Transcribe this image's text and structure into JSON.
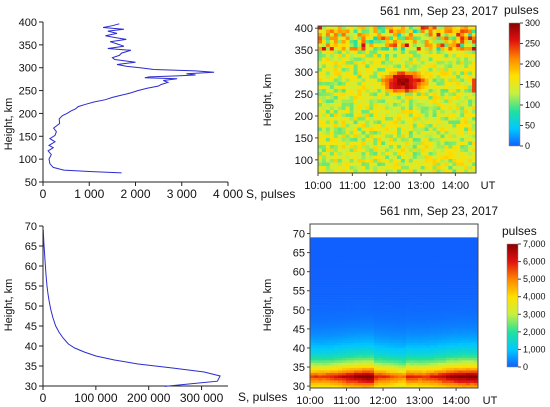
{
  "chart_data": [
    {
      "id": "top-left",
      "type": "line",
      "xlabel": "S, pulses",
      "ylabel": "Height, km",
      "xlim": [
        0,
        4000
      ],
      "ylim": [
        50,
        400
      ],
      "xticks": [
        0,
        1000,
        2000,
        3000,
        4000
      ],
      "xtick_labels": [
        "0",
        "1 000",
        "2 000",
        "3 000",
        "4 000"
      ],
      "yticks": [
        50,
        100,
        150,
        200,
        250,
        300,
        350,
        400
      ],
      "series_color": "#2c2ccf",
      "x": [
        1700,
        1000,
        450,
        220,
        150,
        130,
        180,
        110,
        220,
        130,
        260,
        150,
        260,
        290,
        230,
        360,
        350,
        420,
        520,
        600,
        700,
        760,
        920,
        1100,
        1350,
        1500,
        1700,
        1900,
        2050,
        2250,
        2500,
        2550,
        2700,
        2600,
        2900,
        2200,
        2300,
        2900,
        3300,
        3100,
        3700,
        3300,
        2400,
        2100,
        1800,
        1600,
        2000,
        1550,
        1500,
        1650,
        1700,
        1900,
        1400,
        1750,
        1600,
        1450,
        1800,
        1550,
        1350,
        1600,
        1400,
        1750,
        1300,
        1500,
        1650
      ],
      "y": [
        70,
        73,
        76,
        82,
        90,
        100,
        110,
        118,
        125,
        130,
        138,
        145,
        152,
        160,
        168,
        178,
        188,
        195,
        200,
        205,
        210,
        215,
        220,
        225,
        230,
        235,
        240,
        245,
        250,
        255,
        260,
        263,
        268,
        272,
        276,
        278,
        280,
        282,
        284,
        287,
        290,
        293,
        296,
        300,
        303,
        307,
        312,
        318,
        322,
        327,
        332,
        338,
        342,
        347,
        352,
        357,
        362,
        366,
        370,
        375,
        380,
        384,
        388,
        392,
        396
      ]
    },
    {
      "id": "top-right",
      "type": "heatmap",
      "title": "561 nm, Sep 23, 2017",
      "ylabel": "Height, km",
      "colorbar_label": "pulses",
      "x_tick_labels": [
        "10:00",
        "11:00",
        "12:00",
        "13:00",
        "14:00",
        "UT"
      ],
      "xlim_hours": [
        10.0,
        14.6
      ],
      "yticks": [
        100,
        150,
        200,
        250,
        300,
        350,
        400
      ],
      "ylim": [
        70,
        405
      ],
      "zlim": [
        0,
        300
      ],
      "colorbar_ticks": [
        0,
        50,
        100,
        150,
        200,
        250,
        300
      ],
      "colormap": [
        "#1060ff",
        "#00c8ff",
        "#20e0a0",
        "#c8f040",
        "#ffe000",
        "#ff8800",
        "#e01010",
        "#8a0000"
      ],
      "base_level": 140,
      "hotspot": {
        "time_range": [
          "11:50",
          "13:10"
        ],
        "height_range_km": [
          255,
          300
        ],
        "peak_pulses": 290
      },
      "upper_noise": {
        "height_above_km": 350,
        "max_pulses": 260
      }
    },
    {
      "id": "bottom-left",
      "type": "line",
      "xlabel": "S, pulses",
      "ylabel": "Height, km",
      "xlim": [
        0,
        350000
      ],
      "ylim": [
        30,
        70
      ],
      "xticks": [
        0,
        100000,
        200000,
        300000
      ],
      "xtick_labels": [
        "0",
        "100 000",
        "200 000",
        "300 000"
      ],
      "yticks": [
        30,
        35,
        40,
        45,
        50,
        55,
        60,
        65,
        70
      ],
      "series_color": "#2c2ccf",
      "x": [
        230000,
        330000,
        335000,
        305000,
        245000,
        180000,
        135000,
        100000,
        78000,
        60000,
        48000,
        38000,
        30000,
        24000,
        19000,
        15000,
        12000,
        9500,
        7500,
        5800,
        4500,
        3000,
        1500,
        500
      ],
      "y": [
        29.9,
        31.2,
        32.5,
        33.5,
        34.5,
        35.5,
        36.5,
        37.5,
        38.5,
        39.5,
        40.5,
        42,
        43.5,
        45,
        47,
        49,
        51,
        53,
        55,
        57.5,
        60,
        63,
        66,
        69
      ]
    },
    {
      "id": "bottom-right",
      "type": "heatmap",
      "title": "561 nm, Sep 23, 2017",
      "ylabel": "Height, km",
      "colorbar_label": "pulses",
      "x_tick_labels": [
        "10:00",
        "11:00",
        "12:00",
        "13:00",
        "14:00",
        "UT"
      ],
      "xlim_hours": [
        10.0,
        14.6
      ],
      "yticks": [
        30,
        35,
        40,
        45,
        50,
        55,
        60,
        65,
        70
      ],
      "ylim": [
        29.5,
        72.5
      ],
      "data_top_km": 69,
      "zlim": [
        0,
        7000
      ],
      "colorbar_ticks": [
        0,
        1000,
        2000,
        3000,
        4000,
        5000,
        6000,
        7000
      ],
      "colorbar_tick_labels": [
        "0",
        "1,000",
        "2,000",
        "3,000",
        "4,000",
        "5,000",
        "6,000",
        "7,000"
      ],
      "colormap": [
        "#1060ff",
        "#00c8ff",
        "#20e0a0",
        "#c8f040",
        "#ffe000",
        "#ff8800",
        "#e01010",
        "#8a0000"
      ],
      "peak_height_km": 32.5,
      "peak_pulses": 7000
    }
  ]
}
